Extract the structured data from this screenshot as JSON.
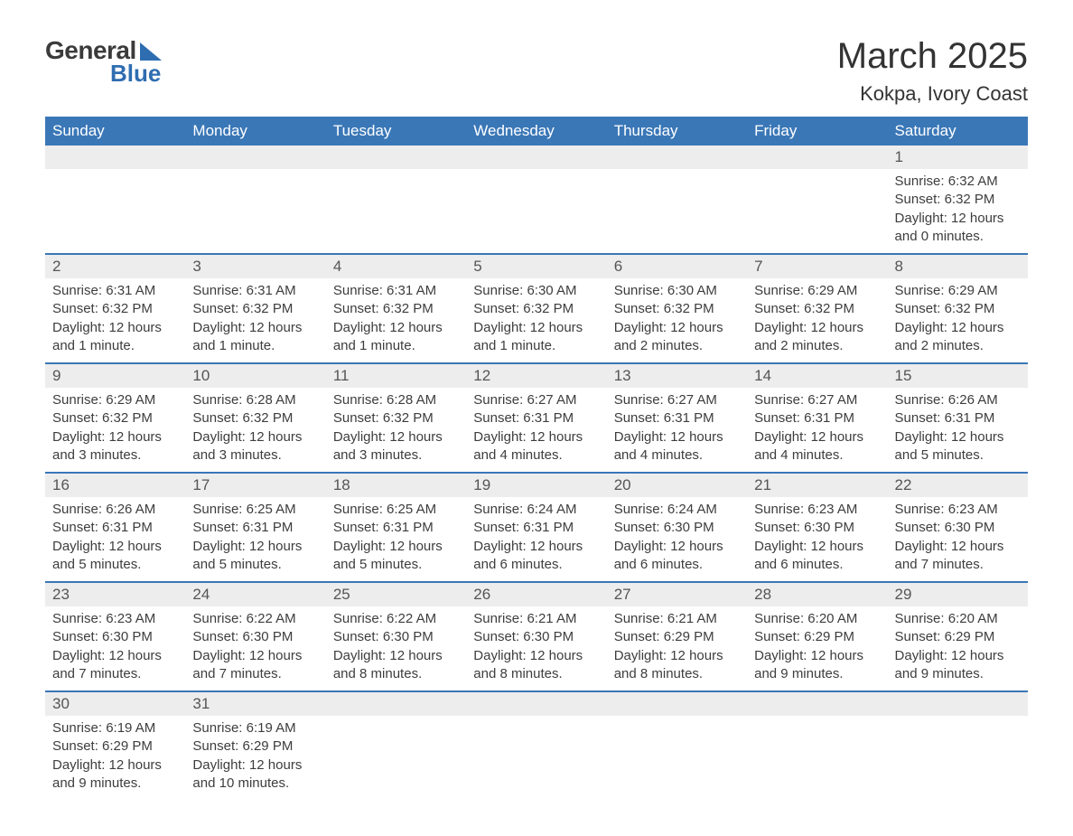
{
  "logo": {
    "line1": "General",
    "line2": "Blue"
  },
  "header": {
    "title": "March 2025",
    "subtitle": "Kokpa, Ivory Coast"
  },
  "colors": {
    "header_bg": "#3a77b7",
    "header_text": "#ffffff",
    "daynum_bg": "#ededed",
    "daynum_text": "#555555",
    "body_text": "#3d3d3d",
    "row_border": "#3a77b7",
    "logo_accent": "#2f6db1",
    "logo_text": "#3b3b3b",
    "page_bg": "#ffffff"
  },
  "typography": {
    "title_fontsize": 40,
    "subtitle_fontsize": 22,
    "dayheader_fontsize": 17,
    "daynum_fontsize": 17,
    "body_fontsize": 15,
    "font_family": "Arial"
  },
  "calendar": {
    "day_headers": [
      "Sunday",
      "Monday",
      "Tuesday",
      "Wednesday",
      "Thursday",
      "Friday",
      "Saturday"
    ],
    "weeks": [
      [
        null,
        null,
        null,
        null,
        null,
        null,
        {
          "n": "1",
          "sunrise": "6:32 AM",
          "sunset": "6:32 PM",
          "daylight": "12 hours and 0 minutes."
        }
      ],
      [
        {
          "n": "2",
          "sunrise": "6:31 AM",
          "sunset": "6:32 PM",
          "daylight": "12 hours and 1 minute."
        },
        {
          "n": "3",
          "sunrise": "6:31 AM",
          "sunset": "6:32 PM",
          "daylight": "12 hours and 1 minute."
        },
        {
          "n": "4",
          "sunrise": "6:31 AM",
          "sunset": "6:32 PM",
          "daylight": "12 hours and 1 minute."
        },
        {
          "n": "5",
          "sunrise": "6:30 AM",
          "sunset": "6:32 PM",
          "daylight": "12 hours and 1 minute."
        },
        {
          "n": "6",
          "sunrise": "6:30 AM",
          "sunset": "6:32 PM",
          "daylight": "12 hours and 2 minutes."
        },
        {
          "n": "7",
          "sunrise": "6:29 AM",
          "sunset": "6:32 PM",
          "daylight": "12 hours and 2 minutes."
        },
        {
          "n": "8",
          "sunrise": "6:29 AM",
          "sunset": "6:32 PM",
          "daylight": "12 hours and 2 minutes."
        }
      ],
      [
        {
          "n": "9",
          "sunrise": "6:29 AM",
          "sunset": "6:32 PM",
          "daylight": "12 hours and 3 minutes."
        },
        {
          "n": "10",
          "sunrise": "6:28 AM",
          "sunset": "6:32 PM",
          "daylight": "12 hours and 3 minutes."
        },
        {
          "n": "11",
          "sunrise": "6:28 AM",
          "sunset": "6:32 PM",
          "daylight": "12 hours and 3 minutes."
        },
        {
          "n": "12",
          "sunrise": "6:27 AM",
          "sunset": "6:31 PM",
          "daylight": "12 hours and 4 minutes."
        },
        {
          "n": "13",
          "sunrise": "6:27 AM",
          "sunset": "6:31 PM",
          "daylight": "12 hours and 4 minutes."
        },
        {
          "n": "14",
          "sunrise": "6:27 AM",
          "sunset": "6:31 PM",
          "daylight": "12 hours and 4 minutes."
        },
        {
          "n": "15",
          "sunrise": "6:26 AM",
          "sunset": "6:31 PM",
          "daylight": "12 hours and 5 minutes."
        }
      ],
      [
        {
          "n": "16",
          "sunrise": "6:26 AM",
          "sunset": "6:31 PM",
          "daylight": "12 hours and 5 minutes."
        },
        {
          "n": "17",
          "sunrise": "6:25 AM",
          "sunset": "6:31 PM",
          "daylight": "12 hours and 5 minutes."
        },
        {
          "n": "18",
          "sunrise": "6:25 AM",
          "sunset": "6:31 PM",
          "daylight": "12 hours and 5 minutes."
        },
        {
          "n": "19",
          "sunrise": "6:24 AM",
          "sunset": "6:31 PM",
          "daylight": "12 hours and 6 minutes."
        },
        {
          "n": "20",
          "sunrise": "6:24 AM",
          "sunset": "6:30 PM",
          "daylight": "12 hours and 6 minutes."
        },
        {
          "n": "21",
          "sunrise": "6:23 AM",
          "sunset": "6:30 PM",
          "daylight": "12 hours and 6 minutes."
        },
        {
          "n": "22",
          "sunrise": "6:23 AM",
          "sunset": "6:30 PM",
          "daylight": "12 hours and 7 minutes."
        }
      ],
      [
        {
          "n": "23",
          "sunrise": "6:23 AM",
          "sunset": "6:30 PM",
          "daylight": "12 hours and 7 minutes."
        },
        {
          "n": "24",
          "sunrise": "6:22 AM",
          "sunset": "6:30 PM",
          "daylight": "12 hours and 7 minutes."
        },
        {
          "n": "25",
          "sunrise": "6:22 AM",
          "sunset": "6:30 PM",
          "daylight": "12 hours and 8 minutes."
        },
        {
          "n": "26",
          "sunrise": "6:21 AM",
          "sunset": "6:30 PM",
          "daylight": "12 hours and 8 minutes."
        },
        {
          "n": "27",
          "sunrise": "6:21 AM",
          "sunset": "6:29 PM",
          "daylight": "12 hours and 8 minutes."
        },
        {
          "n": "28",
          "sunrise": "6:20 AM",
          "sunset": "6:29 PM",
          "daylight": "12 hours and 9 minutes."
        },
        {
          "n": "29",
          "sunrise": "6:20 AM",
          "sunset": "6:29 PM",
          "daylight": "12 hours and 9 minutes."
        }
      ],
      [
        {
          "n": "30",
          "sunrise": "6:19 AM",
          "sunset": "6:29 PM",
          "daylight": "12 hours and 9 minutes."
        },
        {
          "n": "31",
          "sunrise": "6:19 AM",
          "sunset": "6:29 PM",
          "daylight": "12 hours and 10 minutes."
        },
        null,
        null,
        null,
        null,
        null
      ]
    ],
    "labels": {
      "sunrise": "Sunrise:",
      "sunset": "Sunset:",
      "daylight": "Daylight:"
    }
  }
}
